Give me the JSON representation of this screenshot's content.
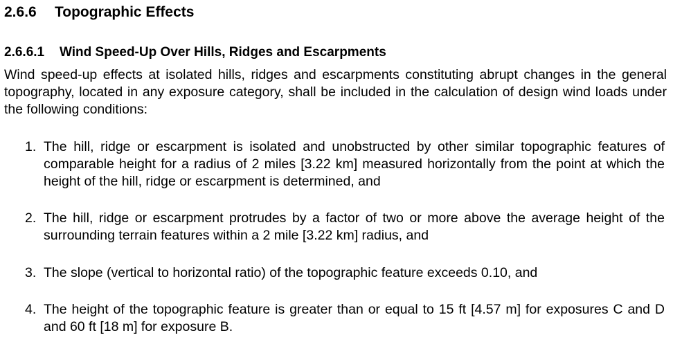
{
  "section": {
    "number": "2.6.6",
    "title": "Topographic Effects"
  },
  "subsection": {
    "number": "2.6.6.1",
    "title": "Wind Speed-Up Over Hills, Ridges and Escarpments"
  },
  "intro": "Wind speed-up effects at isolated hills, ridges and escarpments constituting abrupt changes in the general topography, located in any exposure category, shall be included in the calculation of design wind loads under the following conditions:",
  "conditions": [
    {
      "number": "1.",
      "text": "The hill, ridge or escarpment is isolated and unobstructed by other similar topographic features of comparable height for a radius of 2 miles [3.22 km] measured horizontally from the point at which the height of the hill, ridge or escarpment is determined, and"
    },
    {
      "number": "2.",
      "text": "The hill, ridge or escarpment protrudes by a factor of two or more above the average height of the surrounding terrain features within a 2 mile [3.22 km] radius, and"
    },
    {
      "number": "3.",
      "text": "The slope (vertical to horizontal ratio) of the topographic feature exceeds 0.10, and"
    },
    {
      "number": "4.",
      "text": "The height of the topographic feature is greater than or equal to 15 ft [4.57 m] for exposures C and D and 60 ft [18 m] for exposure B."
    }
  ]
}
